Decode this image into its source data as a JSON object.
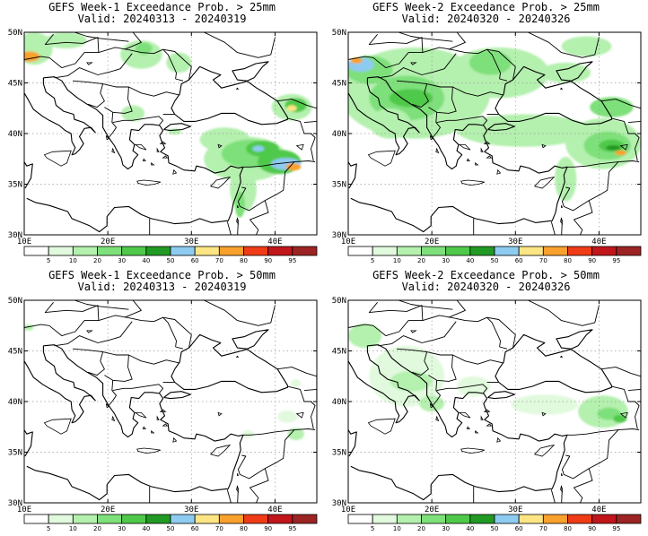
{
  "panels": [
    {
      "title_line1": "GEFS Week-1 Exceedance Prob. > 25mm",
      "title_line2": "Valid: 20240313 - 20240319",
      "blobs": [
        {
          "lon": 11.2,
          "lat": 48.4,
          "rx": 2.2,
          "ry": 1.6,
          "level": 2
        },
        {
          "lon": 10.6,
          "lat": 47.6,
          "rx": 1.3,
          "ry": 0.5,
          "level": 8
        },
        {
          "lon": 15.0,
          "lat": 49.2,
          "rx": 2.5,
          "ry": 0.8,
          "level": 2
        },
        {
          "lon": 24.0,
          "lat": 47.8,
          "rx": 2.5,
          "ry": 1.4,
          "level": 2
        },
        {
          "lon": 24.3,
          "lat": 48.4,
          "rx": 1.0,
          "ry": 0.6,
          "level": 3
        },
        {
          "lon": 28.5,
          "lat": 47.0,
          "rx": 1.5,
          "ry": 1.0,
          "level": 2
        },
        {
          "lon": 23.0,
          "lat": 42.0,
          "rx": 1.4,
          "ry": 0.8,
          "level": 2
        },
        {
          "lon": 42.0,
          "lat": 42.6,
          "rx": 2.4,
          "ry": 1.3,
          "level": 2
        },
        {
          "lon": 42.5,
          "lat": 42.8,
          "rx": 1.3,
          "ry": 0.7,
          "level": 4
        },
        {
          "lon": 42.0,
          "lat": 42.5,
          "rx": 0.6,
          "ry": 0.3,
          "level": 7
        },
        {
          "lon": 34.0,
          "lat": 39.4,
          "rx": 3.0,
          "ry": 1.2,
          "level": 2
        },
        {
          "lon": 36.5,
          "lat": 37.5,
          "rx": 5.0,
          "ry": 2.2,
          "level": 2
        },
        {
          "lon": 37.0,
          "lat": 38.0,
          "rx": 3.4,
          "ry": 1.4,
          "level": 3
        },
        {
          "lon": 38.5,
          "lat": 38.5,
          "rx": 2.0,
          "ry": 0.8,
          "level": 4
        },
        {
          "lon": 38.0,
          "lat": 38.5,
          "rx": 0.7,
          "ry": 0.3,
          "level": 6
        },
        {
          "lon": 40.5,
          "lat": 37.2,
          "rx": 2.6,
          "ry": 1.2,
          "level": 4
        },
        {
          "lon": 41.3,
          "lat": 37.0,
          "rx": 1.8,
          "ry": 0.6,
          "level": 6
        },
        {
          "lon": 42.2,
          "lat": 36.7,
          "rx": 0.9,
          "ry": 0.35,
          "level": 8
        },
        {
          "lon": 36.2,
          "lat": 34.5,
          "rx": 1.6,
          "ry": 2.2,
          "level": 2
        },
        {
          "lon": 35.8,
          "lat": 33.0,
          "rx": 0.6,
          "ry": 1.3,
          "level": 3
        },
        {
          "lon": 28.0,
          "lat": 40.2,
          "rx": 0.8,
          "ry": 0.3,
          "level": 2
        }
      ]
    },
    {
      "title_line1": "GEFS Week-2 Exceedance Prob. > 25mm",
      "title_line2": "Valid: 20240320 - 20240326",
      "blobs": [
        {
          "lon": 18.0,
          "lat": 44.0,
          "rx": 9.0,
          "ry": 4.5,
          "level": 2
        },
        {
          "lon": 17.0,
          "lat": 43.5,
          "rx": 4.5,
          "ry": 2.2,
          "level": 3
        },
        {
          "lon": 12.5,
          "lat": 46.3,
          "rx": 2.8,
          "ry": 1.4,
          "level": 3
        },
        {
          "lon": 11.5,
          "lat": 46.8,
          "rx": 1.6,
          "ry": 0.7,
          "level": 6
        },
        {
          "lon": 11.0,
          "lat": 47.2,
          "rx": 0.7,
          "ry": 0.3,
          "level": 8
        },
        {
          "lon": 17.5,
          "lat": 43.5,
          "rx": 2.6,
          "ry": 0.9,
          "level": 4
        },
        {
          "lon": 15.0,
          "lat": 41.0,
          "rx": 2.5,
          "ry": 1.5,
          "level": 2
        },
        {
          "lon": 28.0,
          "lat": 46.0,
          "rx": 6.0,
          "ry": 2.5,
          "level": 2
        },
        {
          "lon": 27.0,
          "lat": 47.0,
          "rx": 2.5,
          "ry": 1.2,
          "level": 3
        },
        {
          "lon": 31.0,
          "lat": 40.3,
          "rx": 8.0,
          "ry": 1.6,
          "level": 2
        },
        {
          "lon": 40.5,
          "lat": 39.0,
          "rx": 4.5,
          "ry": 2.5,
          "level": 2
        },
        {
          "lon": 41.0,
          "lat": 38.8,
          "rx": 2.8,
          "ry": 1.4,
          "level": 3
        },
        {
          "lon": 41.5,
          "lat": 38.8,
          "rx": 1.5,
          "ry": 0.6,
          "level": 4
        },
        {
          "lon": 41.7,
          "lat": 38.6,
          "rx": 0.9,
          "ry": 0.25,
          "level": 5
        },
        {
          "lon": 42.6,
          "lat": 38.1,
          "rx": 0.7,
          "ry": 0.25,
          "level": 8
        },
        {
          "lon": 41.5,
          "lat": 42.6,
          "rx": 2.6,
          "ry": 1.0,
          "level": 3
        },
        {
          "lon": 36.0,
          "lat": 35.5,
          "rx": 1.3,
          "ry": 2.2,
          "level": 2
        },
        {
          "lon": 36.0,
          "lat": 46.0,
          "rx": 3.0,
          "ry": 1.0,
          "level": 2
        },
        {
          "lon": 38.5,
          "lat": 48.6,
          "rx": 3.0,
          "ry": 1.0,
          "level": 2
        }
      ]
    },
    {
      "title_line1": "GEFS Week-1 Exceedance Prob. > 50mm",
      "title_line2": "Valid: 20240313 - 20240319",
      "blobs": [
        {
          "lon": 10.5,
          "lat": 47.3,
          "rx": 0.6,
          "ry": 0.3,
          "level": 2
        },
        {
          "lon": 42.5,
          "lat": 36.8,
          "rx": 1.0,
          "ry": 0.6,
          "level": 2
        },
        {
          "lon": 41.5,
          "lat": 38.5,
          "rx": 1.2,
          "ry": 0.6,
          "level": 1
        },
        {
          "lon": 36.8,
          "lat": 36.8,
          "rx": 0.7,
          "ry": 0.4,
          "level": 1
        },
        {
          "lon": 42.5,
          "lat": 41.8,
          "rx": 0.6,
          "ry": 0.4,
          "level": 1
        }
      ]
    },
    {
      "title_line1": "GEFS Week-2 Exceedance Prob. > 50mm",
      "title_line2": "Valid: 20240320 - 20240326",
      "blobs": [
        {
          "lon": 17.0,
          "lat": 42.5,
          "rx": 4.5,
          "ry": 3.0,
          "level": 1
        },
        {
          "lon": 12.0,
          "lat": 46.5,
          "rx": 2.0,
          "ry": 1.2,
          "level": 2
        },
        {
          "lon": 17.5,
          "lat": 42.0,
          "rx": 2.5,
          "ry": 1.0,
          "level": 2
        },
        {
          "lon": 20.0,
          "lat": 39.8,
          "rx": 1.5,
          "ry": 0.8,
          "level": 2
        },
        {
          "lon": 25.0,
          "lat": 41.5,
          "rx": 2.0,
          "ry": 1.0,
          "level": 1
        },
        {
          "lon": 40.5,
          "lat": 39.0,
          "rx": 3.0,
          "ry": 1.6,
          "level": 2
        },
        {
          "lon": 41.2,
          "lat": 38.8,
          "rx": 1.4,
          "ry": 0.6,
          "level": 3
        },
        {
          "lon": 42.5,
          "lat": 38.3,
          "rx": 0.8,
          "ry": 0.4,
          "level": 4
        },
        {
          "lon": 33.5,
          "lat": 39.7,
          "rx": 4.0,
          "ry": 1.0,
          "level": 1
        }
      ]
    }
  ],
  "map": {
    "lon_ticks": [
      "10E",
      "20E",
      "30E",
      "40E"
    ],
    "lat_ticks": [
      "50N",
      "45N",
      "40N",
      "35N",
      "30N"
    ],
    "lon_range": [
      10,
      45
    ],
    "lat_range": [
      30,
      50
    ]
  },
  "colorbar": {
    "labels": [
      "5",
      "10",
      "20",
      "30",
      "40",
      "50",
      "60",
      "70",
      "80",
      "90",
      "95"
    ],
    "colors": [
      "#ffffff",
      "#e1f9dd",
      "#b4f0ae",
      "#7ee07a",
      "#4fc94a",
      "#219a24",
      "#8ecbf0",
      "#fde584",
      "#f9a12c",
      "#ef3c17",
      "#c1161a",
      "#9c2424"
    ]
  },
  "style": {
    "land_outline": "#000000",
    "grid": "#9a9a9a"
  }
}
